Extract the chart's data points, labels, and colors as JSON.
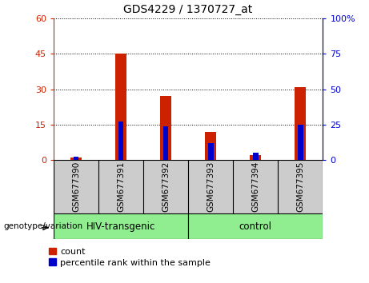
{
  "title": "GDS4229 / 1370727_at",
  "categories": [
    "GSM677390",
    "GSM677391",
    "GSM677392",
    "GSM677393",
    "GSM677394",
    "GSM677395"
  ],
  "count_values": [
    1,
    45,
    27,
    12,
    2,
    31
  ],
  "percentile_values": [
    2,
    27,
    24,
    12,
    5,
    25
  ],
  "left_ylim": [
    0,
    60
  ],
  "right_ylim": [
    0,
    100
  ],
  "left_yticks": [
    0,
    15,
    30,
    45,
    60
  ],
  "right_yticks": [
    0,
    25,
    50,
    75,
    100
  ],
  "left_yticklabels": [
    "0",
    "15",
    "30",
    "45",
    "60"
  ],
  "right_yticklabels": [
    "0",
    "25",
    "50",
    "75",
    "100%"
  ],
  "count_color": "#CC2200",
  "percentile_color": "#0000CC",
  "tick_area_color": "#CCCCCC",
  "group_area_color": "#90EE90",
  "group_label": "genotype/variation",
  "hiv_label": "HIV-transgenic",
  "control_label": "control",
  "legend_count": "count",
  "legend_pct": "percentile rank within the sample"
}
